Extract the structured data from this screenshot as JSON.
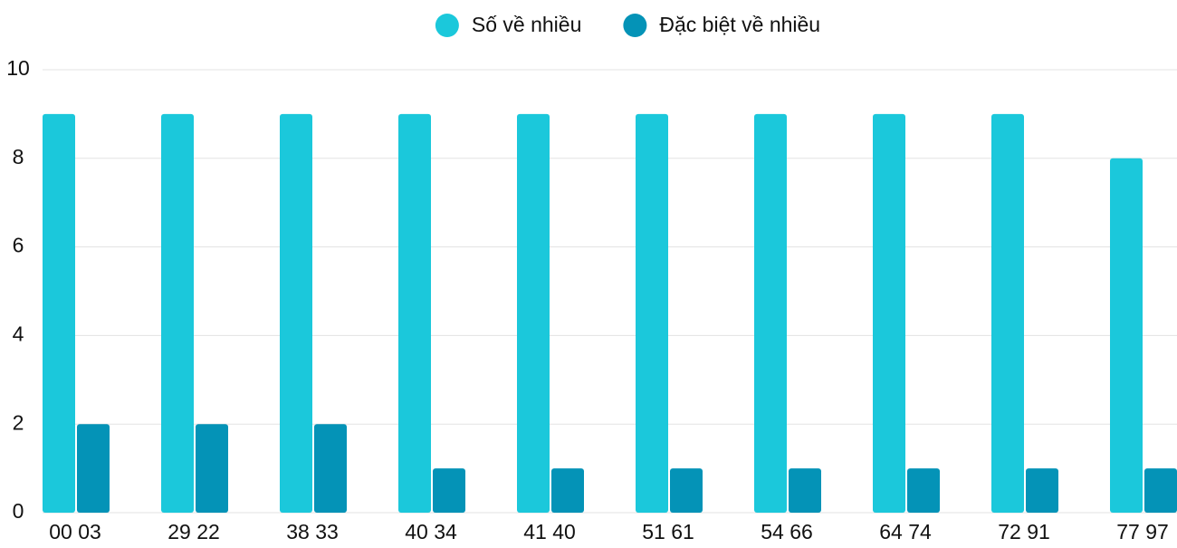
{
  "chart_data": {
    "type": "bar",
    "categories": [
      "00 03",
      "29 22",
      "38 33",
      "40 34",
      "41 40",
      "51 61",
      "54 66",
      "64 74",
      "72 91",
      "77 97"
    ],
    "series": [
      {
        "name": "Số về nhiều",
        "color": "#1bc8db",
        "values": [
          9,
          9,
          9,
          9,
          9,
          9,
          9,
          9,
          9,
          8
        ]
      },
      {
        "name": "Đặc biệt về nhiều",
        "color": "#0493b7",
        "values": [
          2,
          2,
          2,
          1,
          1,
          1,
          1,
          1,
          1,
          1
        ]
      }
    ],
    "ylim": [
      0,
      10
    ],
    "yticks": [
      0,
      2,
      4,
      6,
      8,
      10
    ],
    "grid": true,
    "legend": "top"
  }
}
